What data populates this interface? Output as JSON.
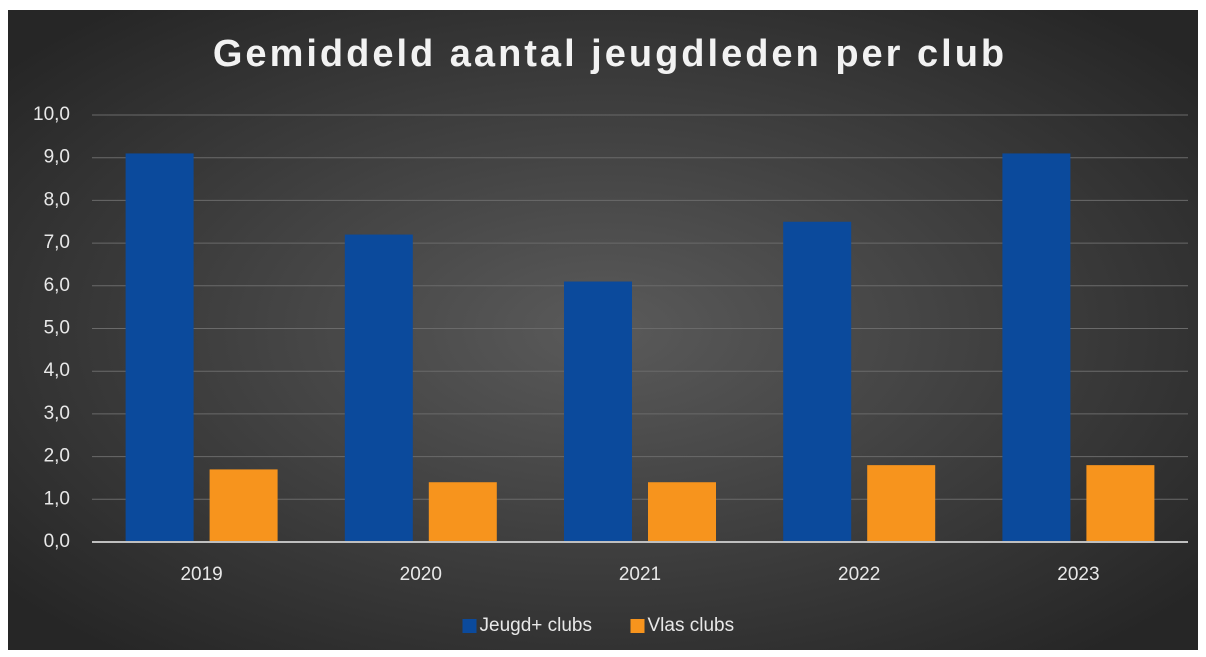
{
  "chart_data": {
    "type": "bar",
    "title": "Gemiddeld aantal jeugdleden per club",
    "categories": [
      "2019",
      "2020",
      "2021",
      "2022",
      "2023"
    ],
    "series": [
      {
        "name": "Jeugd+ clubs",
        "color": "#0b4a9c",
        "values": [
          9.1,
          7.2,
          6.1,
          7.5,
          9.1
        ]
      },
      {
        "name": "Vlas clubs",
        "color": "#f7941d",
        "values": [
          1.7,
          1.4,
          1.4,
          1.8,
          1.8
        ]
      }
    ],
    "ylim": [
      0,
      10
    ],
    "yticks": [
      {
        "value": 0,
        "label": "0,0"
      },
      {
        "value": 1,
        "label": "1,0"
      },
      {
        "value": 2,
        "label": "2,0"
      },
      {
        "value": 3,
        "label": "3,0"
      },
      {
        "value": 4,
        "label": "4,0"
      },
      {
        "value": 5,
        "label": "5,0"
      },
      {
        "value": 6,
        "label": "6,0"
      },
      {
        "value": 7,
        "label": "7,0"
      },
      {
        "value": 8,
        "label": "8,0"
      },
      {
        "value": 9,
        "label": "9,0"
      },
      {
        "value": 10,
        "label": "10,0"
      }
    ],
    "grid": true,
    "legend": "bottom"
  }
}
